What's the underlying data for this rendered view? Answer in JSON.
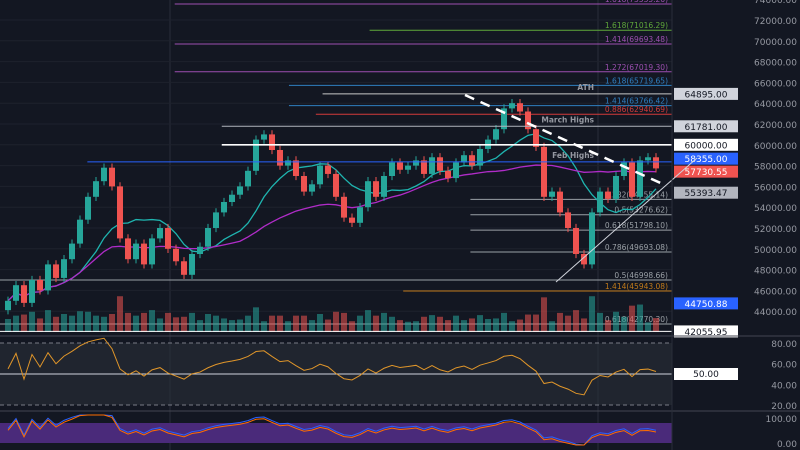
{
  "chart_data": {
    "type": "candlestick",
    "price_axis": {
      "ylim": [
        41500,
        74500
      ],
      "ticks": [
        74000,
        72000,
        70000,
        68000,
        66000,
        64000,
        62000,
        60000,
        58000,
        56000,
        54000,
        52000,
        50000,
        48000,
        46000,
        44000
      ]
    },
    "closes": [
      45000,
      46500,
      44800,
      47000,
      46000,
      48500,
      47200,
      49000,
      50500,
      52800,
      55000,
      56500,
      57800,
      56000,
      51000,
      49000,
      50500,
      48500,
      51000,
      52000,
      50000,
      48800,
      47500,
      49500,
      50200,
      52000,
      53500,
      54500,
      55200,
      56000,
      57500,
      60500,
      61000,
      59500,
      58000,
      58500,
      57000,
      55500,
      56200,
      58000,
      57200,
      55000,
      53000,
      52500,
      54000,
      56500,
      55000,
      57000,
      58300,
      57600,
      58000,
      58500,
      57200,
      58800,
      57500,
      56800,
      58300,
      59000,
      58000,
      59600,
      60500,
      61500,
      63500,
      64000,
      63200,
      61500,
      59800,
      55000,
      55500,
      53500,
      52000,
      49500,
      48500,
      53500,
      55500,
      54800,
      57000,
      58300,
      55000,
      58500,
      58800,
      57730.55
    ],
    "fib_levels": [
      {
        "label": "1.618(73535.26)",
        "price": 73535.26,
        "color": "#9c4fb0",
        "from": 0.26
      },
      {
        "label": "1.618(71016.29)",
        "price": 71016.29,
        "color": "#5fa83a",
        "from": 0.55
      },
      {
        "label": "1.414(69693.48)",
        "price": 69693.48,
        "color": "#9c4fb0",
        "from": 0.26
      },
      {
        "label": "1.272(67019.30)",
        "price": 67019.3,
        "color": "#9c4fb0",
        "from": 0.26
      },
      {
        "label": "1.618(65719.65)",
        "price": 65719.65,
        "color": "#2f7fc1",
        "from": 0.43
      },
      {
        "label": "1.414(63766.42)",
        "price": 63766.42,
        "color": "#2f7fc1",
        "from": 0.43
      },
      {
        "label": "0.886(62940.69)",
        "price": 62940.69,
        "color": "#d33a3a",
        "from": 0.47
      },
      {
        "label": "0.382(54755.14)",
        "price": 54755.14,
        "color": "#9aa0a6",
        "from": 0.7
      },
      {
        "label": "0.5(53276.62)",
        "price": 53276.62,
        "color": "#9aa0a6",
        "from": 0.7
      },
      {
        "label": "0.618(51798.10)",
        "price": 51798.1,
        "color": "#9aa0a6",
        "from": 0.7
      },
      {
        "label": "0.786(49693.08)",
        "price": 49693.08,
        "color": "#9aa0a6",
        "from": 0.7
      },
      {
        "label": "0.5(46998.66)",
        "price": 46998.66,
        "color": "#9aa0a6",
        "from": 0
      },
      {
        "label": "1.414(45943.08)",
        "price": 45943.08,
        "color": "#c07a1a",
        "from": 0.6
      },
      {
        "label": "0.618(42770.30)",
        "price": 42770.3,
        "color": "#9aa0a6",
        "from": 0
      }
    ],
    "horizontal_levels": [
      {
        "name": "ATH",
        "price": 64895.0,
        "tag": "64895.00",
        "color": "#c8c8c8",
        "tagbg": "#d1d4dc",
        "from": 0.48
      },
      {
        "name": "March Highs",
        "price": 61781.0,
        "tag": "61781.00",
        "color": "#b2b5be",
        "tagbg": "#d1d4dc",
        "from": 0.33
      },
      {
        "name": "",
        "price": 60000.0,
        "tag": "60000.00",
        "color": "#ffffff",
        "tagbg": "#ffffff",
        "from": 0.33
      },
      {
        "name": "Feb Highs",
        "price": 58355.0,
        "tag": "58355.00",
        "color": "#2962ff",
        "tagbg": "#2962ff",
        "from": 0.13
      },
      {
        "name": "",
        "price": 57730.55,
        "tag": "57730.55",
        "color": "#ef5350",
        "tagbg": "#ef5350",
        "from": 1
      },
      {
        "name": "",
        "price": 55393.47,
        "tag": "55393.47",
        "color": "#787b86",
        "tagbg": "#b2b5be",
        "from": 1
      },
      {
        "name": "",
        "price": 44750.88,
        "tag": "44750.88",
        "color": "#2962ff",
        "tagbg": "#2962ff",
        "from": 1
      },
      {
        "name": "",
        "price": 42055.95,
        "tag": "42055.95",
        "color": "#ffffff",
        "tagbg": "#ffffff",
        "from": 0
      }
    ],
    "rsi": {
      "ticks": [
        "80.00",
        "60.00",
        "40.00",
        "20.00"
      ],
      "level": "50.00",
      "color": "#e0962a"
    },
    "stoch": {
      "ticks": [
        "100.00",
        "0.00"
      ],
      "colors": [
        "#2962ff",
        "#ff6d00"
      ],
      "band": "#4a2a7a"
    },
    "colors": {
      "up": "#26a69a",
      "down": "#ef5350",
      "ma_fast": "#1fb5b0",
      "ma_slow": "#b02cc8"
    }
  }
}
